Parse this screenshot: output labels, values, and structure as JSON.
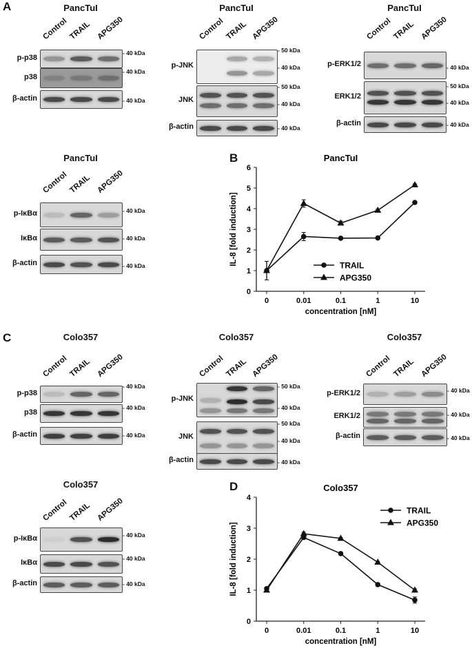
{
  "panels": {
    "A": "A",
    "B": "B",
    "C": "C",
    "D": "D"
  },
  "lanes": [
    "Control",
    "TRAIL",
    "APG350"
  ],
  "blots": {
    "a1": {
      "title": "PancTuI",
      "rows": [
        "p-p38",
        "p38",
        "β-actin"
      ],
      "kda": [
        "40 kDa",
        "40 kDa",
        "40 kDa"
      ]
    },
    "a2": {
      "title": "PancTuI",
      "rows": [
        "p-JNK",
        "JNK",
        "β-actin"
      ],
      "kda": [
        "50 kDa",
        "40 kDa",
        "50 kDa",
        "40 kDa",
        "40 kDa"
      ]
    },
    "a3": {
      "title": "PancTuI",
      "rows": [
        "p-ERK1/2",
        "ERK1/2",
        "β-actin"
      ],
      "kda": [
        "40 kDa",
        "50 kDa",
        "40 kDa",
        "40 kDa"
      ]
    },
    "a4": {
      "title": "PancTuI",
      "rows": [
        "p-IκBα",
        "IκBα",
        "β-actin"
      ],
      "kda": [
        "40 kDa",
        "40 kDa",
        "40 kDa"
      ]
    },
    "c1": {
      "title": "Colo357",
      "rows": [
        "p-p38",
        "p38",
        "β-actin"
      ],
      "kda": [
        "40 kDa",
        "40 kDa",
        "40 kDa"
      ]
    },
    "c2": {
      "title": "Colo357",
      "rows": [
        "p-JNK",
        "JNK",
        "β-actin"
      ],
      "kda": [
        "50 kDa",
        "40 kDa",
        "50 kDa",
        "40 kDa",
        "40 kDa"
      ]
    },
    "c3": {
      "title": "Colo357",
      "rows": [
        "p-ERK1/2",
        "ERK1/2",
        "β-actin"
      ],
      "kda": [
        "40 kDa",
        "40 kDa",
        "40 kDa"
      ]
    },
    "c4": {
      "title": "Colo357",
      "rows": [
        "p-IκBα",
        "IκBα",
        "β-actin"
      ],
      "kda": [
        "40 kDa",
        "40 kDa",
        "40 kDa"
      ]
    }
  },
  "chart_data": [
    {
      "type": "line",
      "title": "PancTuI",
      "xlabel": "concentration [nM]",
      "ylabel": "IL-8 [fold induction]",
      "categories": [
        "0",
        "0.01",
        "0.1",
        "1",
        "10"
      ],
      "ylim": [
        0,
        6
      ],
      "yticks": [
        "0",
        "1",
        "2",
        "3",
        "4",
        "5",
        "6"
      ],
      "legend_position": "bottom-right",
      "series": [
        {
          "name": "TRAIL",
          "marker": "circle",
          "values": [
            1.0,
            2.65,
            2.57,
            2.58,
            4.3
          ],
          "errors": [
            0.45,
            0.2,
            0.03,
            0.03,
            0.03
          ]
        },
        {
          "name": "APG350",
          "marker": "triangle",
          "values": [
            1.0,
            4.25,
            3.3,
            3.92,
            5.15
          ],
          "errors": [
            0.45,
            0.18,
            0.1,
            0.05,
            0.05
          ]
        }
      ]
    },
    {
      "type": "line",
      "title": "Colo357",
      "xlabel": "concentration [nM]",
      "ylabel": "IL-8 [fold induction]",
      "categories": [
        "0",
        "0.01",
        "0.1",
        "1",
        "10"
      ],
      "ylim": [
        0,
        4
      ],
      "yticks": [
        "0",
        "1",
        "2",
        "3",
        "4"
      ],
      "legend_position": "top-right",
      "series": [
        {
          "name": "TRAIL",
          "marker": "circle",
          "values": [
            1.05,
            2.7,
            2.18,
            1.18,
            0.68
          ],
          "errors": [
            0.05,
            0.05,
            0.03,
            0.05,
            0.1
          ]
        },
        {
          "name": "APG350",
          "marker": "triangle",
          "values": [
            1.0,
            2.82,
            2.67,
            1.9,
            1.0
          ],
          "errors": [
            0.05,
            0.05,
            0.03,
            0.03,
            0.04
          ]
        }
      ]
    }
  ]
}
